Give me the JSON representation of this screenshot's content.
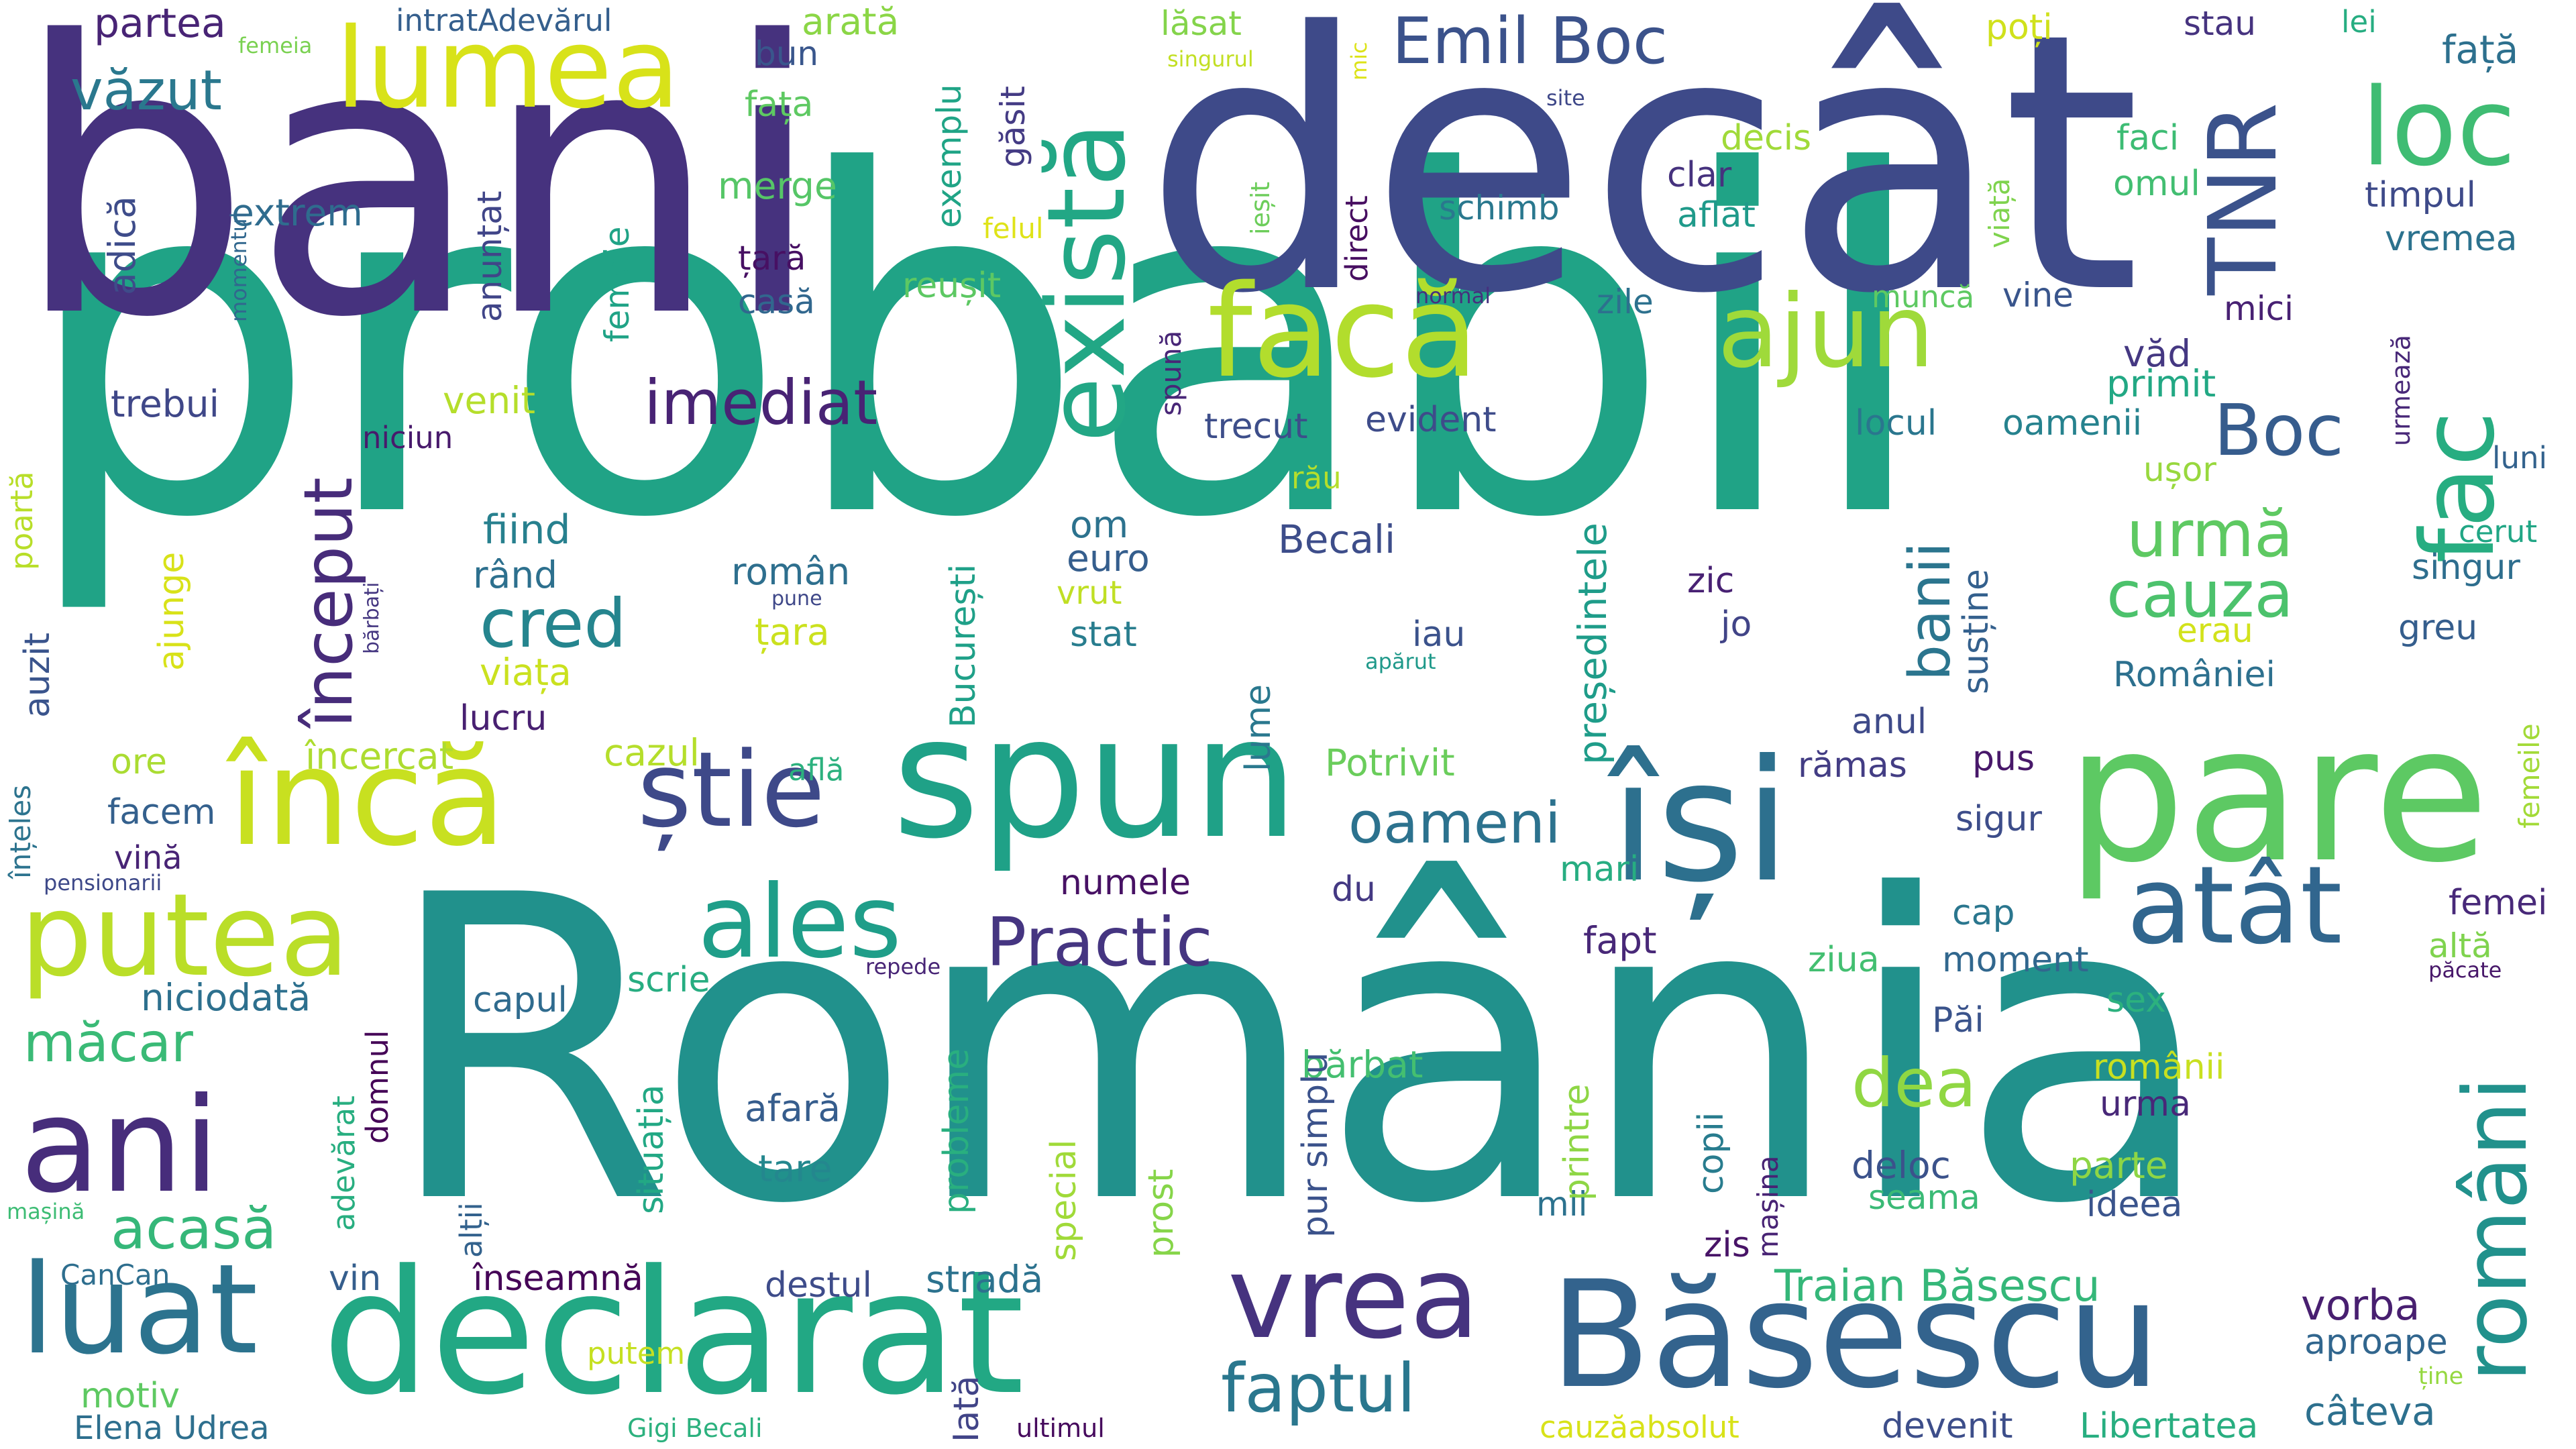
{
  "words": [
    {
      "text": "probabil",
      "color": "#20A386"
    },
    {
      "text": "România",
      "color": "#21918C"
    },
    {
      "text": "bani",
      "color": "#46327E"
    },
    {
      "text": "decât",
      "color": "#3E4A89"
    },
    {
      "text": "pare",
      "color": "#5DC963"
    },
    {
      "text": "spun",
      "color": "#1FA187"
    },
    {
      "text": "declarat",
      "color": "#22A884"
    },
    {
      "text": "Băsescu",
      "color": "#33638D"
    },
    {
      "text": "încă",
      "color": "#C8E020"
    },
    {
      "text": "își",
      "color": "#2D708E"
    },
    {
      "text": "facă",
      "color": "#B2DD2D"
    },
    {
      "text": "vrea",
      "color": "#46337F"
    },
    {
      "text": "luat",
      "color": "#2C738E"
    },
    {
      "text": "ani",
      "color": "#472D7B"
    },
    {
      "text": "putea",
      "color": "#BADE28"
    },
    {
      "text": "există",
      "color": "#22A785"
    },
    {
      "text": "lumea",
      "color": "#D8E219"
    },
    {
      "text": "ajun",
      "color": "#9FDA3A"
    },
    {
      "text": "fac",
      "color": "#27AD81"
    },
    {
      "text": "TNR",
      "color": "#3B528B"
    },
    {
      "text": "loc",
      "color": "#3FBC73"
    },
    {
      "text": "atât",
      "color": "#31668E"
    },
    {
      "text": "știe",
      "color": "#3E4989"
    },
    {
      "text": "ales",
      "color": "#1F9E89"
    },
    {
      "text": "Emil Boc",
      "color": "#3B528B"
    },
    {
      "text": "imediat",
      "color": "#482374"
    },
    {
      "text": "văzut",
      "color": "#2A788E"
    },
    {
      "text": "Boc",
      "color": "#365C8D"
    },
    {
      "text": "urmă",
      "color": "#5EC962"
    },
    {
      "text": "cauza",
      "color": "#4CC26C"
    },
    {
      "text": "oameni",
      "color": "#2C728E"
    },
    {
      "text": "Practic",
      "color": "#453581"
    },
    {
      "text": "faptul",
      "color": "#2A778E"
    },
    {
      "text": "dea",
      "color": "#90D743"
    },
    {
      "text": "români",
      "color": "#21918C"
    },
    {
      "text": "cred",
      "color": "#25858E"
    },
    {
      "text": "început",
      "color": "#472C7A"
    },
    {
      "text": "acasă",
      "color": "#35B779"
    },
    {
      "text": "măcar",
      "color": "#3ABA76"
    },
    {
      "text": "Traian Băsescu",
      "color": "#35B779"
    },
    {
      "text": "banii",
      "color": "#2B758E"
    },
    {
      "text": "vorba",
      "color": "#481F70"
    },
    {
      "text": "câteva",
      "color": "#2D708E"
    },
    {
      "text": "aproape",
      "color": "#31668E"
    },
    {
      "text": "partea",
      "color": "#482475"
    },
    {
      "text": "intratAdevărul",
      "color": "#355F8D"
    },
    {
      "text": "arată",
      "color": "#8BD646"
    },
    {
      "text": "femeia",
      "color": "#7AD151"
    },
    {
      "text": "bun",
      "color": "#39568C"
    },
    {
      "text": "fața",
      "color": "#5EC962"
    },
    {
      "text": "găsit",
      "color": "#443B84"
    },
    {
      "text": "exemplu",
      "color": "#20A486"
    },
    {
      "text": "lăsat",
      "color": "#84D44B"
    },
    {
      "text": "poți",
      "color": "#D0E11C"
    },
    {
      "text": "stau",
      "color": "#46337F"
    },
    {
      "text": "lei",
      "color": "#26AD81"
    },
    {
      "text": "față",
      "color": "#2D708E"
    },
    {
      "text": "singurul",
      "color": "#C2DF23"
    },
    {
      "text": "mic",
      "color": "#DDE318"
    },
    {
      "text": "site",
      "color": "#3F4889"
    },
    {
      "text": "extrem",
      "color": "#2F6C8E"
    },
    {
      "text": "merge",
      "color": "#56C667"
    },
    {
      "text": "adică",
      "color": "#3E4C8A"
    },
    {
      "text": "anunțat",
      "color": "#404588"
    },
    {
      "text": "felul",
      "color": "#DFE318"
    },
    {
      "text": "decis",
      "color": "#A0DA39"
    },
    {
      "text": "faci",
      "color": "#3DBC74"
    },
    {
      "text": "omul",
      "color": "#42BE71"
    },
    {
      "text": "timpul",
      "color": "#3E4A89"
    },
    {
      "text": "vremea",
      "color": "#2C728E"
    },
    {
      "text": "clar",
      "color": "#46327E"
    },
    {
      "text": "aflat",
      "color": "#1F9A8A"
    },
    {
      "text": "schimb",
      "color": "#2A788E"
    },
    {
      "text": "ieșit",
      "color": "#6CCD5A"
    },
    {
      "text": "direct",
      "color": "#470E61"
    },
    {
      "text": "viață",
      "color": "#7FD34E"
    },
    {
      "text": "țară",
      "color": "#471063"
    },
    {
      "text": "casă",
      "color": "#31678E"
    },
    {
      "text": "reușit",
      "color": "#5DC863"
    },
    {
      "text": "momentul",
      "color": "#31678E"
    },
    {
      "text": "normal",
      "color": "#46307E"
    },
    {
      "text": "muncă",
      "color": "#5EC962"
    },
    {
      "text": "vine",
      "color": "#39558C"
    },
    {
      "text": "mici",
      "color": "#482173"
    },
    {
      "text": "zile",
      "color": "#2D718E"
    },
    {
      "text": "femeie",
      "color": "#20A386"
    },
    {
      "text": "urmează",
      "color": "#482878"
    },
    {
      "text": "văd",
      "color": "#453882"
    },
    {
      "text": "primit",
      "color": "#22A884"
    },
    {
      "text": "trebui",
      "color": "#3F4788"
    },
    {
      "text": "venit",
      "color": "#B5DE2B"
    },
    {
      "text": "spună",
      "color": "#482677"
    },
    {
      "text": "locul",
      "color": "#2A768E"
    },
    {
      "text": "oamenii",
      "color": "#26828E"
    },
    {
      "text": "trecut",
      "color": "#3D4E8A"
    },
    {
      "text": "evident",
      "color": "#3E4C8A"
    },
    {
      "text": "niciun",
      "color": "#481A6C"
    },
    {
      "text": "luni",
      "color": "#33628D"
    },
    {
      "text": "ușor",
      "color": "#98D83E"
    },
    {
      "text": "rău",
      "color": "#B4DE2C"
    },
    {
      "text": "fiind",
      "color": "#27808E"
    },
    {
      "text": "președintele",
      "color": "#1E9C89"
    },
    {
      "text": "susține",
      "color": "#34608D"
    },
    {
      "text": "cerut",
      "color": "#21A685"
    },
    {
      "text": "singur",
      "color": "#2E6E8E"
    },
    {
      "text": "Becali",
      "color": "#3D4D8A"
    },
    {
      "text": "om",
      "color": "#2C728E"
    },
    {
      "text": "euro",
      "color": "#355E8D"
    },
    {
      "text": "vrut",
      "color": "#C0DF25"
    },
    {
      "text": "poartă",
      "color": "#B8DE29"
    },
    {
      "text": "rând",
      "color": "#2D708E"
    },
    {
      "text": "român",
      "color": "#2E6F8E"
    },
    {
      "text": "pune",
      "color": "#3F4889"
    },
    {
      "text": "zic",
      "color": "#482173"
    },
    {
      "text": "jo",
      "color": "#414487"
    },
    {
      "text": "greu",
      "color": "#355E8D"
    },
    {
      "text": "auzit",
      "color": "#3A548C"
    },
    {
      "text": "bărbați",
      "color": "#453781"
    },
    {
      "text": "București",
      "color": "#1FA088"
    },
    {
      "text": "stat",
      "color": "#287D8E"
    },
    {
      "text": "erau",
      "color": "#D2E21B"
    },
    {
      "text": "ajunge",
      "color": "#D8E219"
    },
    {
      "text": "țara",
      "color": "#CBE11E"
    },
    {
      "text": "iau",
      "color": "#3B528B"
    },
    {
      "text": "apărut",
      "color": "#1F998A"
    },
    {
      "text": "viața",
      "color": "#CAE11F"
    },
    {
      "text": "lume",
      "color": "#2A788E"
    },
    {
      "text": "României",
      "color": "#2D708E"
    },
    {
      "text": "lucru",
      "color": "#482071"
    },
    {
      "text": "anul",
      "color": "#3E4A89"
    },
    {
      "text": "ore",
      "color": "#AADC32"
    },
    {
      "text": "încercat",
      "color": "#ADDC30"
    },
    {
      "text": "cazul",
      "color": "#B5DE2B"
    },
    {
      "text": "Potrivit",
      "color": "#6ACD5B"
    },
    {
      "text": "rămas",
      "color": "#433D84"
    },
    {
      "text": "pus",
      "color": "#48186A"
    },
    {
      "text": "înțeles",
      "color": "#2C738E"
    },
    {
      "text": "femeile",
      "color": "#A2DA37"
    },
    {
      "text": "află",
      "color": "#2CB17E"
    },
    {
      "text": "facem",
      "color": "#34608D"
    },
    {
      "text": "sigur",
      "color": "#3D4D8A"
    },
    {
      "text": "vină",
      "color": "#482475"
    },
    {
      "text": "mari",
      "color": "#27AD81"
    },
    {
      "text": "pensionarii",
      "color": "#3E4989"
    },
    {
      "text": "numele",
      "color": "#471164"
    },
    {
      "text": "du",
      "color": "#443983"
    },
    {
      "text": "cap",
      "color": "#2A768E"
    },
    {
      "text": "femei",
      "color": "#482979"
    },
    {
      "text": "altă",
      "color": "#7FD34E"
    },
    {
      "text": "niciodată",
      "color": "#2D708E"
    },
    {
      "text": "fapt",
      "color": "#482878"
    },
    {
      "text": "ziua",
      "color": "#43BF71"
    },
    {
      "text": "moment",
      "color": "#31678E"
    },
    {
      "text": "păcate",
      "color": "#48186A"
    },
    {
      "text": "capul",
      "color": "#2F6B8E"
    },
    {
      "text": "scrie",
      "color": "#27AD81"
    },
    {
      "text": "repede",
      "color": "#482576"
    },
    {
      "text": "sex",
      "color": "#2CB17E"
    },
    {
      "text": "domnul",
      "color": "#450457"
    },
    {
      "text": "situația",
      "color": "#22A884"
    },
    {
      "text": "probleme",
      "color": "#29AF7F"
    },
    {
      "text": "bărbat",
      "color": "#44BF70"
    },
    {
      "text": "Păi",
      "color": "#3A538B"
    },
    {
      "text": "românii",
      "color": "#C8E020"
    },
    {
      "text": "adevărat",
      "color": "#28AE80"
    },
    {
      "text": "afară",
      "color": "#365D8D"
    },
    {
      "text": "copii",
      "color": "#287C8E"
    },
    {
      "text": "urma",
      "color": "#482878"
    },
    {
      "text": "printre",
      "color": "#8ED645"
    },
    {
      "text": "deloc",
      "color": "#3B528B"
    },
    {
      "text": "parte",
      "color": "#8ED645"
    },
    {
      "text": "pur simplu",
      "color": "#3B528B"
    },
    {
      "text": "mașină",
      "color": "#3DBC74"
    },
    {
      "text": "alții",
      "color": "#33628D"
    },
    {
      "text": "tare",
      "color": "#24878E"
    },
    {
      "text": "special",
      "color": "#A0DA39"
    },
    {
      "text": "prost",
      "color": "#86D549"
    },
    {
      "text": "mii",
      "color": "#2C728E"
    },
    {
      "text": "mașina",
      "color": "#482374"
    },
    {
      "text": "zis",
      "color": "#481467"
    },
    {
      "text": "seama",
      "color": "#3ABA76"
    },
    {
      "text": "ideea",
      "color": "#3A548C"
    },
    {
      "text": "CanCan",
      "color": "#2E6E8E"
    },
    {
      "text": "vin",
      "color": "#355E8D"
    },
    {
      "text": "înseamnă",
      "color": "#450457"
    },
    {
      "text": "destul",
      "color": "#3E4C8A"
    },
    {
      "text": "stradă",
      "color": "#2C728E"
    },
    {
      "text": "motiv",
      "color": "#5EC962"
    },
    {
      "text": "putem",
      "color": "#C5E021"
    },
    {
      "text": "Elena Udrea",
      "color": "#2E6F8E"
    },
    {
      "text": "Gigi Becali",
      "color": "#2CB17E"
    },
    {
      "text": "Iată",
      "color": "#414487"
    },
    {
      "text": "ultimul",
      "color": "#460A5D"
    },
    {
      "text": "cauzăabsolut",
      "color": "#D8E219"
    },
    {
      "text": "devenit",
      "color": "#3D4E8A"
    },
    {
      "text": "Libertatea",
      "color": "#28AE80"
    },
    {
      "text": "ține",
      "color": "#95D840"
    }
  ]
}
